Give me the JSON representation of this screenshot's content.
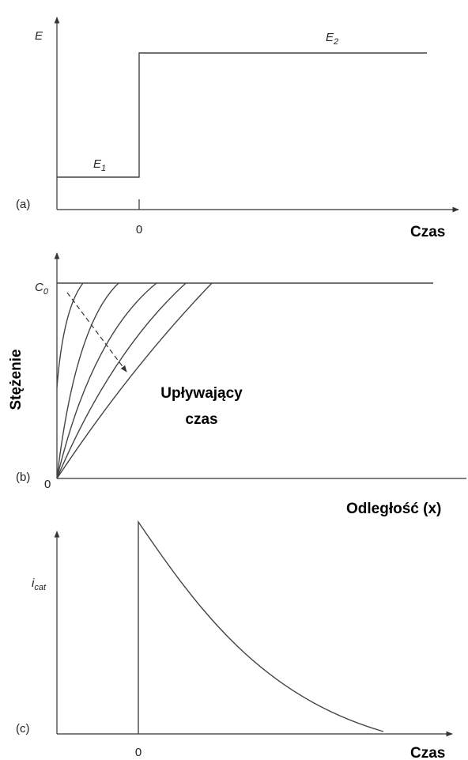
{
  "panels": [
    {
      "tag": "(a)",
      "y_label": "E",
      "levels": [
        {
          "main": "E",
          "sub": "1"
        },
        {
          "main": "E",
          "sub": "2"
        }
      ],
      "x_tick": "0",
      "x_label": "Czas"
    },
    {
      "tag": "(b)",
      "y_top": {
        "main": "C",
        "sub": "0"
      },
      "origin": "0",
      "y_label": "Stężenie",
      "arrow_label": [
        "Upływający",
        "czas"
      ],
      "x_label": "Odległość (x)"
    },
    {
      "tag": "(c)",
      "y_label": {
        "main": "i",
        "sub": "cat"
      },
      "x_tick": "0",
      "x_label": "Czas"
    }
  ]
}
